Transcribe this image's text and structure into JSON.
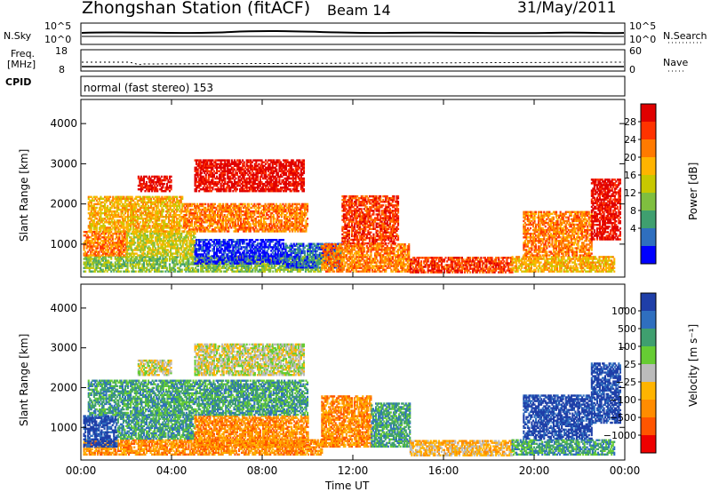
{
  "header": {
    "title": "Zhongshan Station (fitACF)",
    "beam": "Beam 14",
    "date": "31/May/2011"
  },
  "params": {
    "nsky_label": "N.Sky",
    "nsearch_label": "N.Search",
    "nsky_ticks": [
      "10^5",
      "10^0"
    ],
    "nsearch_ticks": [
      "10^5",
      "10^0"
    ],
    "freq_label_1": "Freq.",
    "freq_label_2": "[MHz]",
    "freq_ticks": [
      "18",
      "8"
    ],
    "nave_label": "Nave",
    "nave_ticks": [
      "60",
      "0"
    ],
    "cpid_label": "CPID",
    "cpid_value": "normal (fast stereo) 153"
  },
  "chart_data": [
    {
      "type": "heatmap",
      "name": "power",
      "ylabel": "Slant Range [km]",
      "xlabel": "Time UT",
      "ylim": [
        180,
        4600
      ],
      "xlim": [
        0,
        24
      ],
      "yticks": [
        "4000",
        "3000",
        "2000",
        "1000"
      ],
      "xticks": [
        "00:00",
        "04:00",
        "08:00",
        "12:00",
        "16:00",
        "20:00",
        "00:00"
      ],
      "colorbar": {
        "label": "Power [dB]",
        "ticks": [
          "28",
          "24",
          "20",
          "16",
          "12",
          "8",
          "4"
        ],
        "colors": [
          "#e00000",
          "#ff3300",
          "#ff7a00",
          "#ffb400",
          "#c8c800",
          "#7fbf3f",
          "#3f9f6f",
          "#2f6fbf",
          "#0000ff"
        ]
      },
      "regions": [
        {
          "t0": 0.1,
          "t1": 10.6,
          "r0": 300,
          "r1": 700,
          "level": 5
        },
        {
          "t0": 0.1,
          "t1": 2.0,
          "r0": 700,
          "r1": 1300,
          "level": 2
        },
        {
          "t0": 2.0,
          "t1": 5.0,
          "r0": 700,
          "r1": 1300,
          "level": 4
        },
        {
          "t0": 5.0,
          "t1": 9.0,
          "r0": 500,
          "r1": 1100,
          "level": 8
        },
        {
          "t0": 9.0,
          "t1": 11.5,
          "r0": 400,
          "r1": 1000,
          "level": 7
        },
        {
          "t0": 0.3,
          "t1": 4.5,
          "r0": 1300,
          "r1": 2200,
          "level": 3
        },
        {
          "t0": 4.5,
          "t1": 10.0,
          "r0": 1300,
          "r1": 2000,
          "level": 2
        },
        {
          "t0": 2.5,
          "t1": 4.0,
          "r0": 2300,
          "r1": 2700,
          "level": 0
        },
        {
          "t0": 5.0,
          "t1": 9.8,
          "r0": 2300,
          "r1": 3100,
          "level": 0
        },
        {
          "t0": 10.6,
          "t1": 14.5,
          "r0": 300,
          "r1": 1000,
          "level": 2
        },
        {
          "t0": 11.5,
          "t1": 14.0,
          "r0": 1000,
          "r1": 2200,
          "level": 1
        },
        {
          "t0": 14.5,
          "t1": 19.0,
          "r0": 280,
          "r1": 650,
          "level": 1
        },
        {
          "t0": 19.0,
          "t1": 23.5,
          "r0": 300,
          "r1": 700,
          "level": 3
        },
        {
          "t0": 19.5,
          "t1": 22.5,
          "r0": 700,
          "r1": 1800,
          "level": 2
        },
        {
          "t0": 22.5,
          "t1": 23.8,
          "r0": 1100,
          "r1": 2600,
          "level": 0
        }
      ]
    },
    {
      "type": "heatmap",
      "name": "velocity",
      "ylabel": "Slant Range [km]",
      "xlabel": "Time UT",
      "ylim": [
        180,
        4600
      ],
      "xlim": [
        0,
        24
      ],
      "yticks": [
        "4000",
        "3000",
        "2000",
        "1000"
      ],
      "xticks": [
        "00:00",
        "04:00",
        "08:00",
        "12:00",
        "16:00",
        "20:00",
        "00:00"
      ],
      "colorbar": {
        "label": "Velocity [m s⁻¹]",
        "ticks": [
          "1000",
          "500",
          "100",
          "25",
          "−25",
          "−100",
          "−500",
          "−1000"
        ],
        "colors": [
          "#1f3fa8",
          "#2f6fbf",
          "#3f9f6f",
          "#66cc33",
          "#bbbbbb",
          "#ffb400",
          "#ff8c00",
          "#ff5500",
          "#ee0000"
        ]
      },
      "regions": [
        {
          "t0": 0.1,
          "t1": 10.6,
          "r0": 300,
          "r1": 700,
          "level": 6
        },
        {
          "t0": 0.1,
          "t1": 1.6,
          "r0": 500,
          "r1": 1300,
          "level": 0
        },
        {
          "t0": 1.6,
          "t1": 5.0,
          "r0": 700,
          "r1": 1300,
          "level": 2
        },
        {
          "t0": 5.0,
          "t1": 10.0,
          "r0": 500,
          "r1": 1300,
          "level": 6
        },
        {
          "t0": 0.3,
          "t1": 4.5,
          "r0": 1300,
          "r1": 2200,
          "level": 2
        },
        {
          "t0": 4.5,
          "t1": 10.0,
          "r0": 1300,
          "r1": 2200,
          "level": 2
        },
        {
          "t0": 2.5,
          "t1": 4.0,
          "r0": 2300,
          "r1": 2700,
          "level": 4
        },
        {
          "t0": 5.0,
          "t1": 9.8,
          "r0": 2300,
          "r1": 3100,
          "level": 4
        },
        {
          "t0": 10.6,
          "t1": 12.8,
          "r0": 500,
          "r1": 1800,
          "level": 6
        },
        {
          "t0": 12.8,
          "t1": 14.5,
          "r0": 500,
          "r1": 1600,
          "level": 2
        },
        {
          "t0": 14.5,
          "t1": 19.0,
          "r0": 280,
          "r1": 650,
          "level": 5
        },
        {
          "t0": 19.0,
          "t1": 23.5,
          "r0": 300,
          "r1": 700,
          "level": 2
        },
        {
          "t0": 19.5,
          "t1": 22.5,
          "r0": 700,
          "r1": 1800,
          "level": 0
        },
        {
          "t0": 22.5,
          "t1": 23.8,
          "r0": 1100,
          "r1": 2600,
          "level": 0
        }
      ]
    }
  ]
}
